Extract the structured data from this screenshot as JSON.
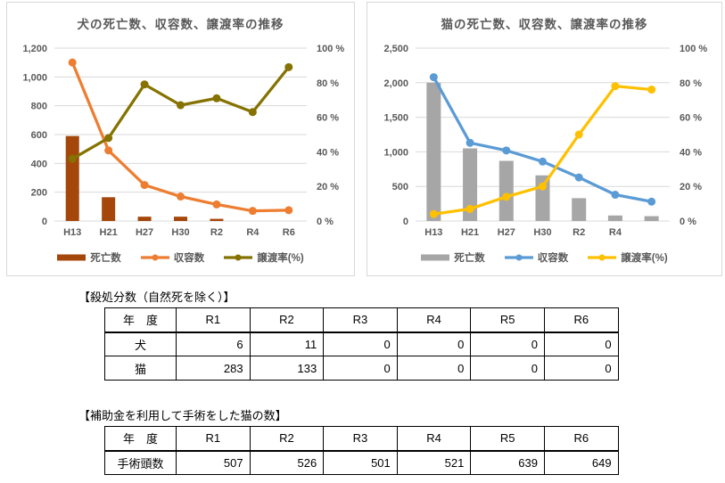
{
  "chart_data": [
    {
      "type": "combo",
      "title": "犬の死亡数、収容数、譲渡率の推移",
      "categories": [
        "H13",
        "H21",
        "H27",
        "H30",
        "R2",
        "R4",
        "R6"
      ],
      "series": [
        {
          "key": "deaths",
          "name": "死亡数",
          "type": "bar",
          "axis": "left",
          "color": "#A5470B",
          "values": [
            590,
            165,
            30,
            30,
            15,
            0,
            0
          ]
        },
        {
          "key": "intake",
          "name": "収容数",
          "type": "line",
          "axis": "left",
          "color": "#ED7D31",
          "values": [
            1100,
            490,
            250,
            170,
            115,
            70,
            75
          ]
        },
        {
          "key": "adoption-rate",
          "name": "譲渡率(%)",
          "type": "line",
          "axis": "right",
          "color": "#857200",
          "values": [
            36,
            48,
            79,
            67,
            71,
            63,
            89
          ]
        }
      ],
      "left_axis": {
        "min": 0,
        "max": 1200,
        "step": 200
      },
      "right_axis": {
        "min": 0,
        "max": 100,
        "step": 20,
        "suffix": " %"
      },
      "grid": true,
      "legend_position": "bottom"
    },
    {
      "type": "combo",
      "title": "猫の死亡数、収容数、譲渡率の推移",
      "categories": [
        "H13",
        "H21",
        "H27",
        "H30",
        "R2",
        "R4",
        ""
      ],
      "series": [
        {
          "key": "deaths",
          "name": "死亡数",
          "type": "bar",
          "axis": "left",
          "color": "#A6A6A6",
          "values": [
            2000,
            1050,
            870,
            660,
            330,
            80,
            70
          ]
        },
        {
          "key": "intake",
          "name": "収容数",
          "type": "line",
          "axis": "left",
          "color": "#5B9BD5",
          "values": [
            2080,
            1130,
            1020,
            860,
            630,
            380,
            280
          ]
        },
        {
          "key": "adoption-rate",
          "name": "譲渡率(%)",
          "type": "line",
          "axis": "right",
          "color": "#FFC000",
          "values": [
            4,
            7,
            14,
            20,
            50,
            78,
            76
          ]
        }
      ],
      "left_axis": {
        "min": 0,
        "max": 2500,
        "step": 500
      },
      "right_axis": {
        "min": 0,
        "max": 100,
        "step": 20,
        "suffix": " %"
      },
      "grid": true,
      "legend_position": "bottom"
    }
  ],
  "tables": [
    {
      "title": "【殺処分数（自然死を除く）】",
      "headers": [
        "年　度",
        "R1",
        "R2",
        "R3",
        "R4",
        "R5",
        "R6"
      ],
      "rows": [
        {
          "label": "犬",
          "values": [
            "6",
            "11",
            "0",
            "0",
            "0",
            "0"
          ]
        },
        {
          "label": "猫",
          "values": [
            "283",
            "133",
            "0",
            "0",
            "0",
            "0"
          ]
        }
      ]
    },
    {
      "title": "【補助金を利用して手術をした猫の数】",
      "headers": [
        "年　度",
        "R1",
        "R2",
        "R3",
        "R4",
        "R5",
        "R6"
      ],
      "rows": [
        {
          "label": "手術頭数",
          "values": [
            "507",
            "526",
            "501",
            "521",
            "639",
            "649"
          ]
        }
      ]
    }
  ],
  "colors": {
    "grid": "#D9D9D9",
    "axis_text": "#595959",
    "title_text": "#595959",
    "table_border": "#000000"
  }
}
